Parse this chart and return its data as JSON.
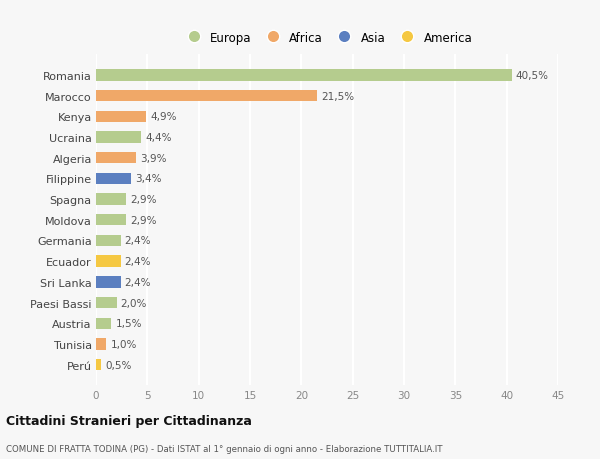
{
  "countries": [
    "Romania",
    "Marocco",
    "Kenya",
    "Ucraina",
    "Algeria",
    "Filippine",
    "Spagna",
    "Moldova",
    "Germania",
    "Ecuador",
    "Sri Lanka",
    "Paesi Bassi",
    "Austria",
    "Tunisia",
    "Perú"
  ],
  "values": [
    40.5,
    21.5,
    4.9,
    4.4,
    3.9,
    3.4,
    2.9,
    2.9,
    2.4,
    2.4,
    2.4,
    2.0,
    1.5,
    1.0,
    0.5
  ],
  "labels": [
    "40,5%",
    "21,5%",
    "4,9%",
    "4,4%",
    "3,9%",
    "3,4%",
    "2,9%",
    "2,9%",
    "2,4%",
    "2,4%",
    "2,4%",
    "2,0%",
    "1,5%",
    "1,0%",
    "0,5%"
  ],
  "continents": [
    "Europa",
    "Africa",
    "Africa",
    "Europa",
    "Africa",
    "Asia",
    "Europa",
    "Europa",
    "Europa",
    "America",
    "Asia",
    "Europa",
    "Europa",
    "Africa",
    "America"
  ],
  "colors": {
    "Europa": "#b5cc8e",
    "Africa": "#f0a868",
    "Asia": "#5b7fc0",
    "America": "#f5c842"
  },
  "legend_order": [
    "Europa",
    "Africa",
    "Asia",
    "America"
  ],
  "xlim": [
    0,
    45
  ],
  "xticks": [
    0,
    5,
    10,
    15,
    20,
    25,
    30,
    35,
    40,
    45
  ],
  "title": "Cittadini Stranieri per Cittadinanza",
  "subtitle": "COMUNE DI FRATTA TODINA (PG) - Dati ISTAT al 1° gennaio di ogni anno - Elaborazione TUTTITALIA.IT",
  "background_color": "#f7f7f7",
  "grid_color": "#ffffff",
  "bar_height": 0.55
}
